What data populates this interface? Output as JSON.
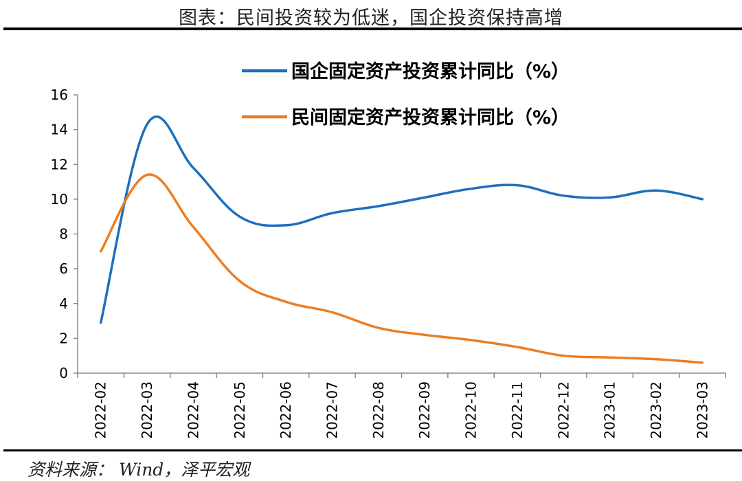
{
  "header": {
    "title": "图表：民间投资较为低迷，国企投资保持高增"
  },
  "footer": {
    "source": "资料来源： Wind，泽平宏观"
  },
  "colors": {
    "state_owned": "#1f6fbd",
    "private": "#ed7d22"
  },
  "chart_data": {
    "type": "line",
    "categories": [
      "2022-02",
      "2022-03",
      "2022-04",
      "2022-05",
      "2022-06",
      "2022-07",
      "2022-08",
      "2022-09",
      "2022-10",
      "2022-11",
      "2022-12",
      "2023-01",
      "2023-02",
      "2023-03"
    ],
    "series": [
      {
        "name": "国企固定资产投资累计同比（%）",
        "values": [
          2.9,
          14.3,
          11.8,
          9.0,
          8.5,
          9.2,
          9.6,
          10.1,
          10.6,
          10.8,
          10.2,
          10.1,
          10.5,
          10.0
        ]
      },
      {
        "name": "民间固定资产投资累计同比（%）",
        "values": [
          7.0,
          11.4,
          8.4,
          5.3,
          4.1,
          3.5,
          2.6,
          2.2,
          1.9,
          1.5,
          1.0,
          0.9,
          0.8,
          0.6
        ]
      }
    ],
    "ylim": [
      0,
      16
    ],
    "yticks": [
      "0",
      "2",
      "4",
      "6",
      "8",
      "10",
      "12",
      "14",
      "16"
    ],
    "legend": "top-right",
    "grid": false
  }
}
